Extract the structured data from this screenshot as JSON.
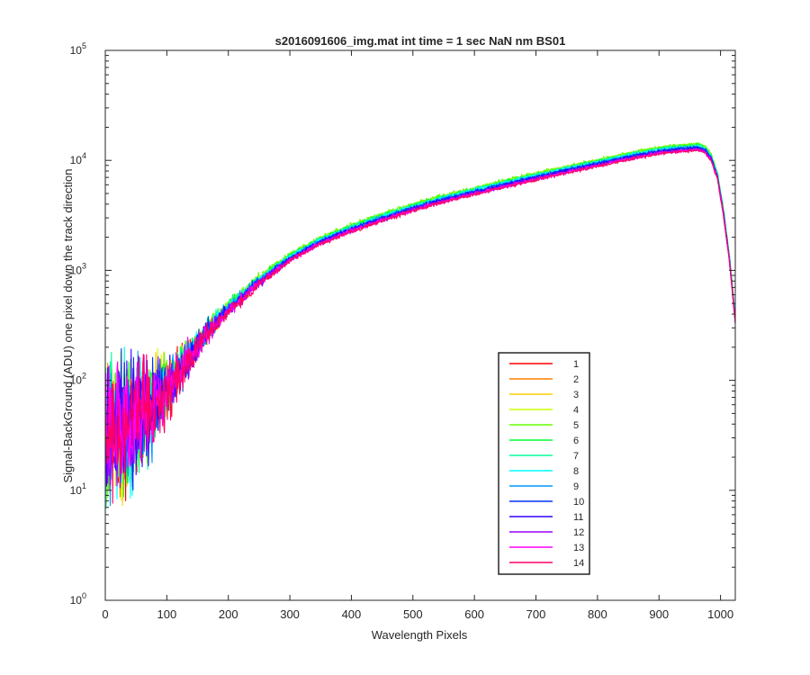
{
  "chart_data": {
    "type": "line",
    "title": "s2016091606_img.mat int time = 1 sec  NaN nm BS01",
    "xlabel": "Wavelength Pixels",
    "ylabel": "Signal-BackGround (ADU) one pixel down the track direction",
    "xlim": [
      0,
      1024
    ],
    "ylim": [
      1,
      100000
    ],
    "yscale": "log",
    "grid": false,
    "legend_position": "bottom-right",
    "x_ticks": [
      "0",
      "100",
      "200",
      "300",
      "400",
      "500",
      "600",
      "700",
      "800",
      "900",
      "1000"
    ],
    "y_ticks": [
      {
        "base": "10",
        "exp": "0"
      },
      {
        "base": "10",
        "exp": "1"
      },
      {
        "base": "10",
        "exp": "2"
      },
      {
        "base": "10",
        "exp": "3"
      },
      {
        "base": "10",
        "exp": "4"
      },
      {
        "base": "10",
        "exp": "5"
      }
    ],
    "profile_x": [
      0,
      10,
      30,
      50,
      70,
      100,
      130,
      160,
      200,
      250,
      300,
      350,
      400,
      450,
      500,
      550,
      600,
      650,
      700,
      750,
      800,
      850,
      900,
      930,
      950,
      965,
      975,
      985,
      995,
      1005,
      1015,
      1024
    ],
    "profile_y": [
      30,
      32,
      36,
      44,
      55,
      85,
      150,
      250,
      450,
      800,
      1300,
      1850,
      2400,
      3000,
      3700,
      4450,
      5200,
      6100,
      7100,
      8200,
      9400,
      10800,
      12200,
      12700,
      13000,
      13200,
      12400,
      10500,
      7200,
      3300,
      1200,
      350
    ],
    "noise_amplitude_decades": [
      {
        "x": 0,
        "amp": 0.55
      },
      {
        "x": 50,
        "amp": 0.45
      },
      {
        "x": 100,
        "amp": 0.22
      },
      {
        "x": 150,
        "amp": 0.1
      },
      {
        "x": 200,
        "amp": 0.05
      },
      {
        "x": 300,
        "amp": 0.018
      },
      {
        "x": 1024,
        "amp": 0.012
      }
    ],
    "series": [
      {
        "name": "1",
        "color": "#ff0000",
        "scale": 0.97
      },
      {
        "name": "2",
        "color": "#ff7f00",
        "scale": 0.99
      },
      {
        "name": "3",
        "color": "#ffcc00",
        "scale": 1.02
      },
      {
        "name": "4",
        "color": "#ccff00",
        "scale": 1.06
      },
      {
        "name": "5",
        "color": "#66ff00",
        "scale": 1.08
      },
      {
        "name": "6",
        "color": "#00ff33",
        "scale": 1.05
      },
      {
        "name": "7",
        "color": "#00ff99",
        "scale": 1.04
      },
      {
        "name": "8",
        "color": "#00ffff",
        "scale": 1.03
      },
      {
        "name": "9",
        "color": "#0099ff",
        "scale": 1.01
      },
      {
        "name": "10",
        "color": "#0033ff",
        "scale": 1.0
      },
      {
        "name": "11",
        "color": "#3300ff",
        "scale": 0.98
      },
      {
        "name": "12",
        "color": "#9900ff",
        "scale": 0.96
      },
      {
        "name": "13",
        "color": "#ff00ff",
        "scale": 0.95
      },
      {
        "name": "14",
        "color": "#ff0066",
        "scale": 0.94
      }
    ]
  }
}
